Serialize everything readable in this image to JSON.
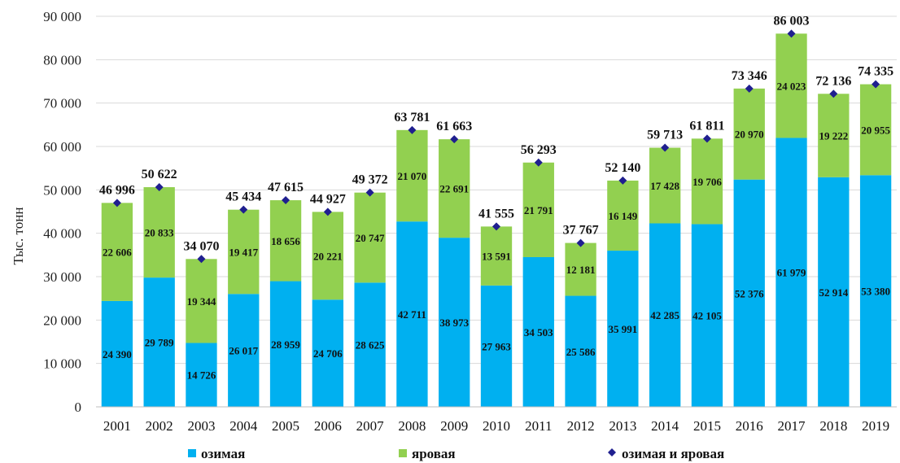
{
  "chart_data": {
    "type": "bar",
    "stacked": true,
    "title": "",
    "xlabel": "",
    "ylabel": "Тыс. тонн",
    "ylim": [
      0,
      90000
    ],
    "yticks": [
      0,
      10000,
      20000,
      30000,
      40000,
      50000,
      60000,
      70000,
      80000,
      90000
    ],
    "ytick_labels": [
      "0",
      "10 000",
      "20 000",
      "30 000",
      "40 000",
      "50 000",
      "60 000",
      "70 000",
      "80 000",
      "90 000"
    ],
    "grid": true,
    "legend_position": "bottom",
    "categories": [
      "2001",
      "2002",
      "2003",
      "2004",
      "2005",
      "2006",
      "2007",
      "2008",
      "2009",
      "2010",
      "2011",
      "2012",
      "2013",
      "2014",
      "2015",
      "2016",
      "2017",
      "2018",
      "2019"
    ],
    "series": [
      {
        "name": "озимая",
        "color": "#00B0F0",
        "values": [
          24390,
          29789,
          14726,
          26017,
          28959,
          24706,
          28625,
          42711,
          38973,
          27963,
          34503,
          25586,
          35991,
          42285,
          42105,
          52376,
          61979,
          52914,
          53380
        ],
        "labels": [
          "24 390",
          "29 789",
          "14 726",
          "26 017",
          "28 959",
          "24 706",
          "28 625",
          "42 711",
          "38 973",
          "27 963",
          "34 503",
          "25 586",
          "35 991",
          "42 285",
          "42 105",
          "52 376",
          "61 979",
          "52 914",
          "53 380"
        ]
      },
      {
        "name": "яровая",
        "color": "#92D050",
        "values": [
          22606,
          20833,
          19344,
          19417,
          18656,
          20221,
          20747,
          21070,
          22691,
          13591,
          21791,
          12181,
          16149,
          17428,
          19706,
          20970,
          24023,
          19222,
          20955
        ],
        "labels": [
          "22 606",
          "20 833",
          "19 344",
          "19 417",
          "18 656",
          "20 221",
          "20 747",
          "21 070",
          "22 691",
          "13 591",
          "21 791",
          "12 181",
          "16 149",
          "17 428",
          "19 706",
          "20 970",
          "24 023",
          "19 222",
          "20 955"
        ]
      },
      {
        "name": "озимая и яровая",
        "type": "scatter",
        "color": "#1F1F8F",
        "values": [
          46996,
          50622,
          34070,
          45434,
          47615,
          44927,
          49372,
          63781,
          61663,
          41555,
          56293,
          37767,
          52140,
          59713,
          61811,
          73346,
          86003,
          72136,
          74335
        ],
        "labels": [
          "46 996",
          "50 622",
          "34 070",
          "45 434",
          "47 615",
          "44 927",
          "49 372",
          "63 781",
          "61 663",
          "41 555",
          "56 293",
          "37 767",
          "52 140",
          "59 713",
          "61 811",
          "73 346",
          "86 003",
          "72 136",
          "74 335"
        ]
      }
    ]
  }
}
